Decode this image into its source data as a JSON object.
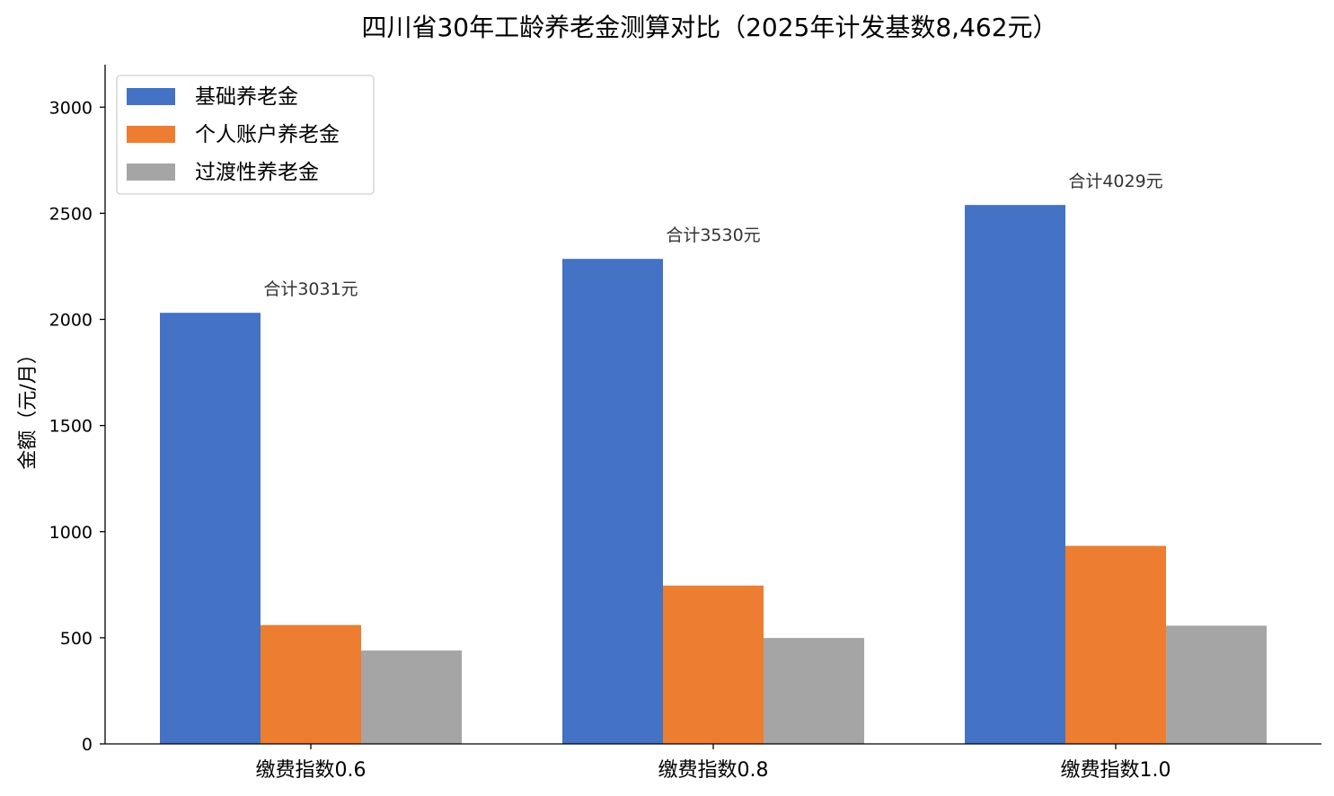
{
  "chart_data": {
    "type": "bar",
    "title": "四川省30年工龄养老金测算对比（2025年计发基数8,462元）",
    "xlabel": "",
    "ylabel": "金额（元/月）",
    "ylim": [
      0,
      3200
    ],
    "yticks": [
      0,
      500,
      1000,
      1500,
      2000,
      2500,
      3000
    ],
    "categories": [
      "缴费指数0.6",
      "缴费指数0.8",
      "缴费指数1.0"
    ],
    "series": [
      {
        "name": "基础养老金",
        "color": "#4472C4",
        "values": [
          2031,
          2285,
          2539
        ]
      },
      {
        "name": "个人账户养老金",
        "color": "#ED7D31",
        "values": [
          560,
          746,
          933
        ]
      },
      {
        "name": "过渡性养老金",
        "color": "#A5A5A5",
        "values": [
          440,
          499,
          557
        ]
      }
    ],
    "annotations": [
      "合计3031元",
      "合计3530元",
      "合计4029元"
    ],
    "totals": [
      3031,
      3530,
      4029
    ],
    "legend_position": "top-left",
    "grid": false
  }
}
